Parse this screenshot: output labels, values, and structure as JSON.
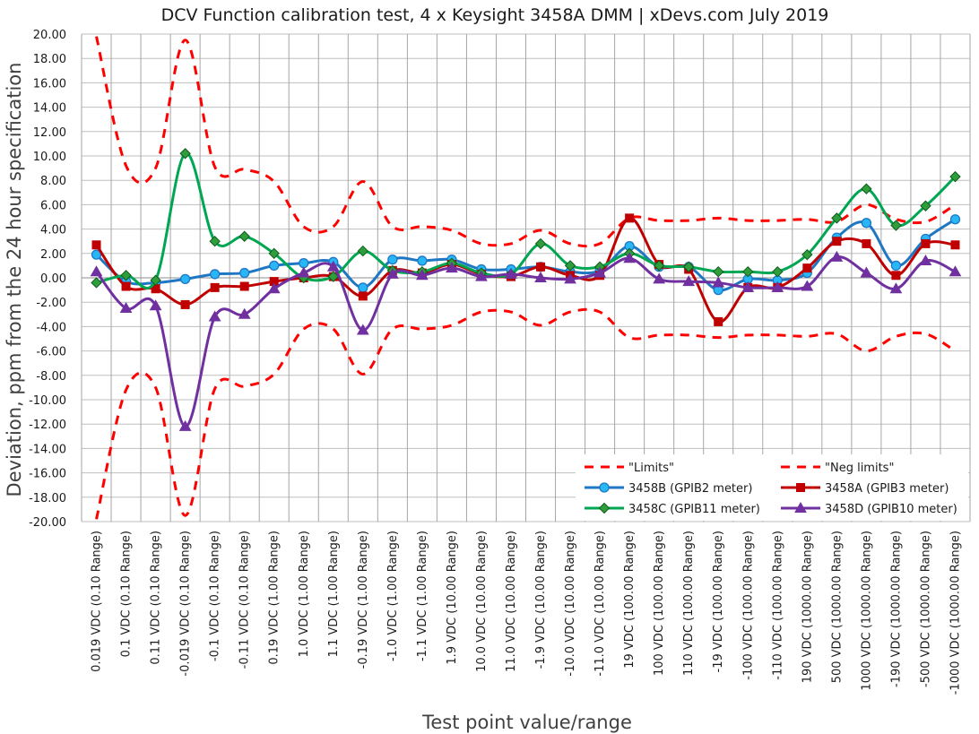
{
  "chart_data": {
    "type": "line",
    "title": "DCV Function calibration test, 4 x Keysight 3458A DMM | xDevs.com July 2019",
    "xlabel": "Test point value/range",
    "ylabel": "Deviation, ppm from the 24 hour specification",
    "ylim": [
      -20,
      20
    ],
    "ytick_step": 2,
    "grid": true,
    "legend_position": "bottom-right",
    "categories": [
      "0.019 VDC (0.10 Range)",
      "0.1 VDC (0.10 Range)",
      "0.11 VDC (0.10 Range)",
      "-0.019 VDC (0.10 Range)",
      "-0.1 VDC (0.10 Range)",
      "-0.11 VDC (0.10 Range)",
      "0.19 VDC (1.00 Range)",
      "1.0 VDC (1.00 Range)",
      "1.1 VDC (1.00 Range)",
      "-0.19 VDC (1.00 Range)",
      "-1.0 VDC (1.00 Range)",
      "-1.1 VDC (1.00 Range)",
      "1.9 VDC (10.00 Range)",
      "10.0 VDC (10.00 Range)",
      "11.0 VDC (10.00 Range)",
      "-1.9 VDC (10.00 Range)",
      "-10.0 VDC (10.00 Range)",
      "-11.0 VDC (10.00 Range)",
      "19 VDC (100.00 Range)",
      "100 VDC (100.00 Range)",
      "110 VDC (100.00 Range)",
      "-19 VDC (100.00 Range)",
      "-100 VDC (100.00 Range)",
      "-110 VDC (100.00 Range)",
      "190 VDC (1000.00 Range)",
      "500 VDC (1000.00 Range)",
      "1000 VDC (1000.00 Range)",
      "-190 VDC (1000.00 Range)",
      "-500 VDC (1000.00 Range)",
      "-1000 VDC (1000.00 Range)"
    ],
    "series": [
      {
        "name": "\"Limits\"",
        "color": "#ff0000",
        "style": "dashed",
        "marker": "none",
        "values": [
          19.8,
          9.2,
          9.0,
          19.5,
          9.1,
          8.9,
          7.9,
          4.2,
          4.2,
          7.9,
          4.2,
          4.2,
          3.9,
          2.8,
          2.8,
          3.9,
          2.8,
          2.8,
          4.9,
          4.7,
          4.7,
          4.9,
          4.7,
          4.7,
          4.8,
          4.6,
          6.0,
          4.8,
          4.6,
          6.0
        ]
      },
      {
        "name": "\"Neg limits\"",
        "color": "#ff0000",
        "style": "dashed",
        "marker": "none",
        "values": [
          -19.8,
          -9.2,
          -9.0,
          -19.5,
          -9.1,
          -8.9,
          -7.9,
          -4.2,
          -4.2,
          -7.9,
          -4.2,
          -4.2,
          -3.9,
          -2.8,
          -2.8,
          -3.9,
          -2.8,
          -2.8,
          -4.9,
          -4.7,
          -4.7,
          -4.9,
          -4.7,
          -4.7,
          -4.8,
          -4.6,
          -6.0,
          -4.8,
          -4.6,
          -6.0
        ]
      },
      {
        "name": "3458B (GPIB2 meter)",
        "color": "#1f77c4",
        "style": "solid",
        "marker": "circle",
        "values": [
          1.9,
          -0.3,
          -0.4,
          -0.1,
          0.3,
          0.4,
          1.0,
          1.2,
          1.3,
          -0.8,
          1.5,
          1.4,
          1.5,
          0.7,
          0.7,
          0.9,
          0.5,
          0.6,
          2.6,
          0.9,
          0.9,
          -1.0,
          -0.1,
          -0.2,
          0.4,
          3.3,
          4.5,
          1.0,
          3.2,
          4.8
        ]
      },
      {
        "name": "3458A (GPIB3 meter)",
        "color": "#c00000",
        "style": "solid",
        "marker": "square",
        "values": [
          2.7,
          -0.7,
          -0.9,
          -2.2,
          -0.8,
          -0.7,
          -0.3,
          0.0,
          0.1,
          -1.5,
          0.6,
          0.4,
          1.1,
          0.3,
          0.1,
          0.9,
          0.2,
          0.2,
          4.9,
          1.1,
          0.7,
          -3.6,
          -0.8,
          -0.8,
          0.8,
          3.0,
          2.8,
          0.2,
          2.8,
          2.7
        ]
      },
      {
        "name": "3458C (GPIB11 meter)",
        "color": "#00a651",
        "style": "solid",
        "marker": "diamond",
        "values": [
          -0.4,
          0.2,
          -0.2,
          10.2,
          3.0,
          3.4,
          2.0,
          0.0,
          0.1,
          2.2,
          0.6,
          0.5,
          1.2,
          0.4,
          0.3,
          2.8,
          1.0,
          0.9,
          2.0,
          1.0,
          0.9,
          0.5,
          0.5,
          0.5,
          1.9,
          4.9,
          7.3,
          4.3,
          5.9,
          8.3
        ]
      },
      {
        "name": "3458D (GPIB10 meter)",
        "color": "#7030a0",
        "style": "solid",
        "marker": "triangle",
        "values": [
          0.5,
          -2.5,
          -2.3,
          -12.2,
          -3.2,
          -3.0,
          -0.9,
          0.4,
          0.9,
          -4.3,
          0.3,
          0.2,
          0.8,
          0.1,
          0.3,
          0.0,
          -0.1,
          0.4,
          1.6,
          -0.1,
          -0.3,
          -0.4,
          -0.8,
          -0.8,
          -0.7,
          1.7,
          0.4,
          -0.9,
          1.4,
          0.5
        ]
      }
    ]
  }
}
